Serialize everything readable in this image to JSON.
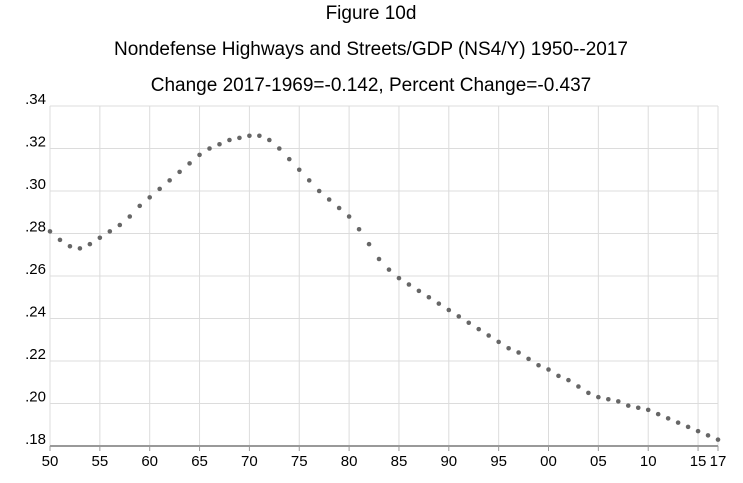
{
  "chart_data": {
    "type": "line",
    "title": "Figure 10d",
    "subtitle": "Nondefense Highways and Streets/GDP (NS4/Y) 1950--2017",
    "annotation": "Change 2017-1969=-0.142, Percent Change=-0.437",
    "x": [
      1950,
      1951,
      1952,
      1953,
      1954,
      1955,
      1956,
      1957,
      1958,
      1959,
      1960,
      1961,
      1962,
      1963,
      1964,
      1965,
      1966,
      1967,
      1968,
      1969,
      1970,
      1971,
      1972,
      1973,
      1974,
      1975,
      1976,
      1977,
      1978,
      1979,
      1980,
      1981,
      1982,
      1983,
      1984,
      1985,
      1986,
      1987,
      1988,
      1989,
      1990,
      1991,
      1992,
      1993,
      1994,
      1995,
      1996,
      1997,
      1998,
      1999,
      2000,
      2001,
      2002,
      2003,
      2004,
      2005,
      2006,
      2007,
      2008,
      2009,
      2010,
      2011,
      2012,
      2013,
      2014,
      2015,
      2016,
      2017
    ],
    "series": [
      {
        "name": "NS4/Y",
        "color": "#666666",
        "values": [
          0.281,
          0.277,
          0.274,
          0.273,
          0.275,
          0.278,
          0.281,
          0.284,
          0.288,
          0.293,
          0.297,
          0.301,
          0.305,
          0.309,
          0.313,
          0.317,
          0.32,
          0.322,
          0.324,
          0.325,
          0.326,
          0.326,
          0.324,
          0.32,
          0.315,
          0.31,
          0.305,
          0.3,
          0.296,
          0.292,
          0.288,
          0.282,
          0.275,
          0.268,
          0.263,
          0.259,
          0.256,
          0.253,
          0.25,
          0.247,
          0.244,
          0.241,
          0.238,
          0.235,
          0.232,
          0.229,
          0.226,
          0.224,
          0.221,
          0.218,
          0.216,
          0.213,
          0.211,
          0.208,
          0.205,
          0.203,
          0.202,
          0.201,
          0.199,
          0.198,
          0.197,
          0.195,
          0.193,
          0.191,
          0.189,
          0.187,
          0.185,
          0.183
        ]
      }
    ],
    "xlim": [
      1950,
      2017
    ],
    "xticks": [
      {
        "value": 1950,
        "label": "50"
      },
      {
        "value": 1955,
        "label": "55"
      },
      {
        "value": 1960,
        "label": "60"
      },
      {
        "value": 1965,
        "label": "65"
      },
      {
        "value": 1970,
        "label": "70"
      },
      {
        "value": 1975,
        "label": "75"
      },
      {
        "value": 1980,
        "label": "80"
      },
      {
        "value": 1985,
        "label": "85"
      },
      {
        "value": 1990,
        "label": "90"
      },
      {
        "value": 1995,
        "label": "95"
      },
      {
        "value": 2000,
        "label": "00"
      },
      {
        "value": 2005,
        "label": "05"
      },
      {
        "value": 2010,
        "label": "10"
      },
      {
        "value": 2015,
        "label": "15"
      },
      {
        "value": 2017,
        "label": "17"
      }
    ],
    "ylim": [
      0.18,
      0.34
    ],
    "yticks": [
      {
        "value": 0.18,
        "label": ".18"
      },
      {
        "value": 0.2,
        "label": ".20"
      },
      {
        "value": 0.22,
        "label": ".22"
      },
      {
        "value": 0.24,
        "label": ".24"
      },
      {
        "value": 0.26,
        "label": ".26"
      },
      {
        "value": 0.28,
        "label": ".28"
      },
      {
        "value": 0.3,
        "label": ".30"
      },
      {
        "value": 0.32,
        "label": ".32"
      },
      {
        "value": 0.34,
        "label": ".34"
      }
    ],
    "grid": true
  }
}
